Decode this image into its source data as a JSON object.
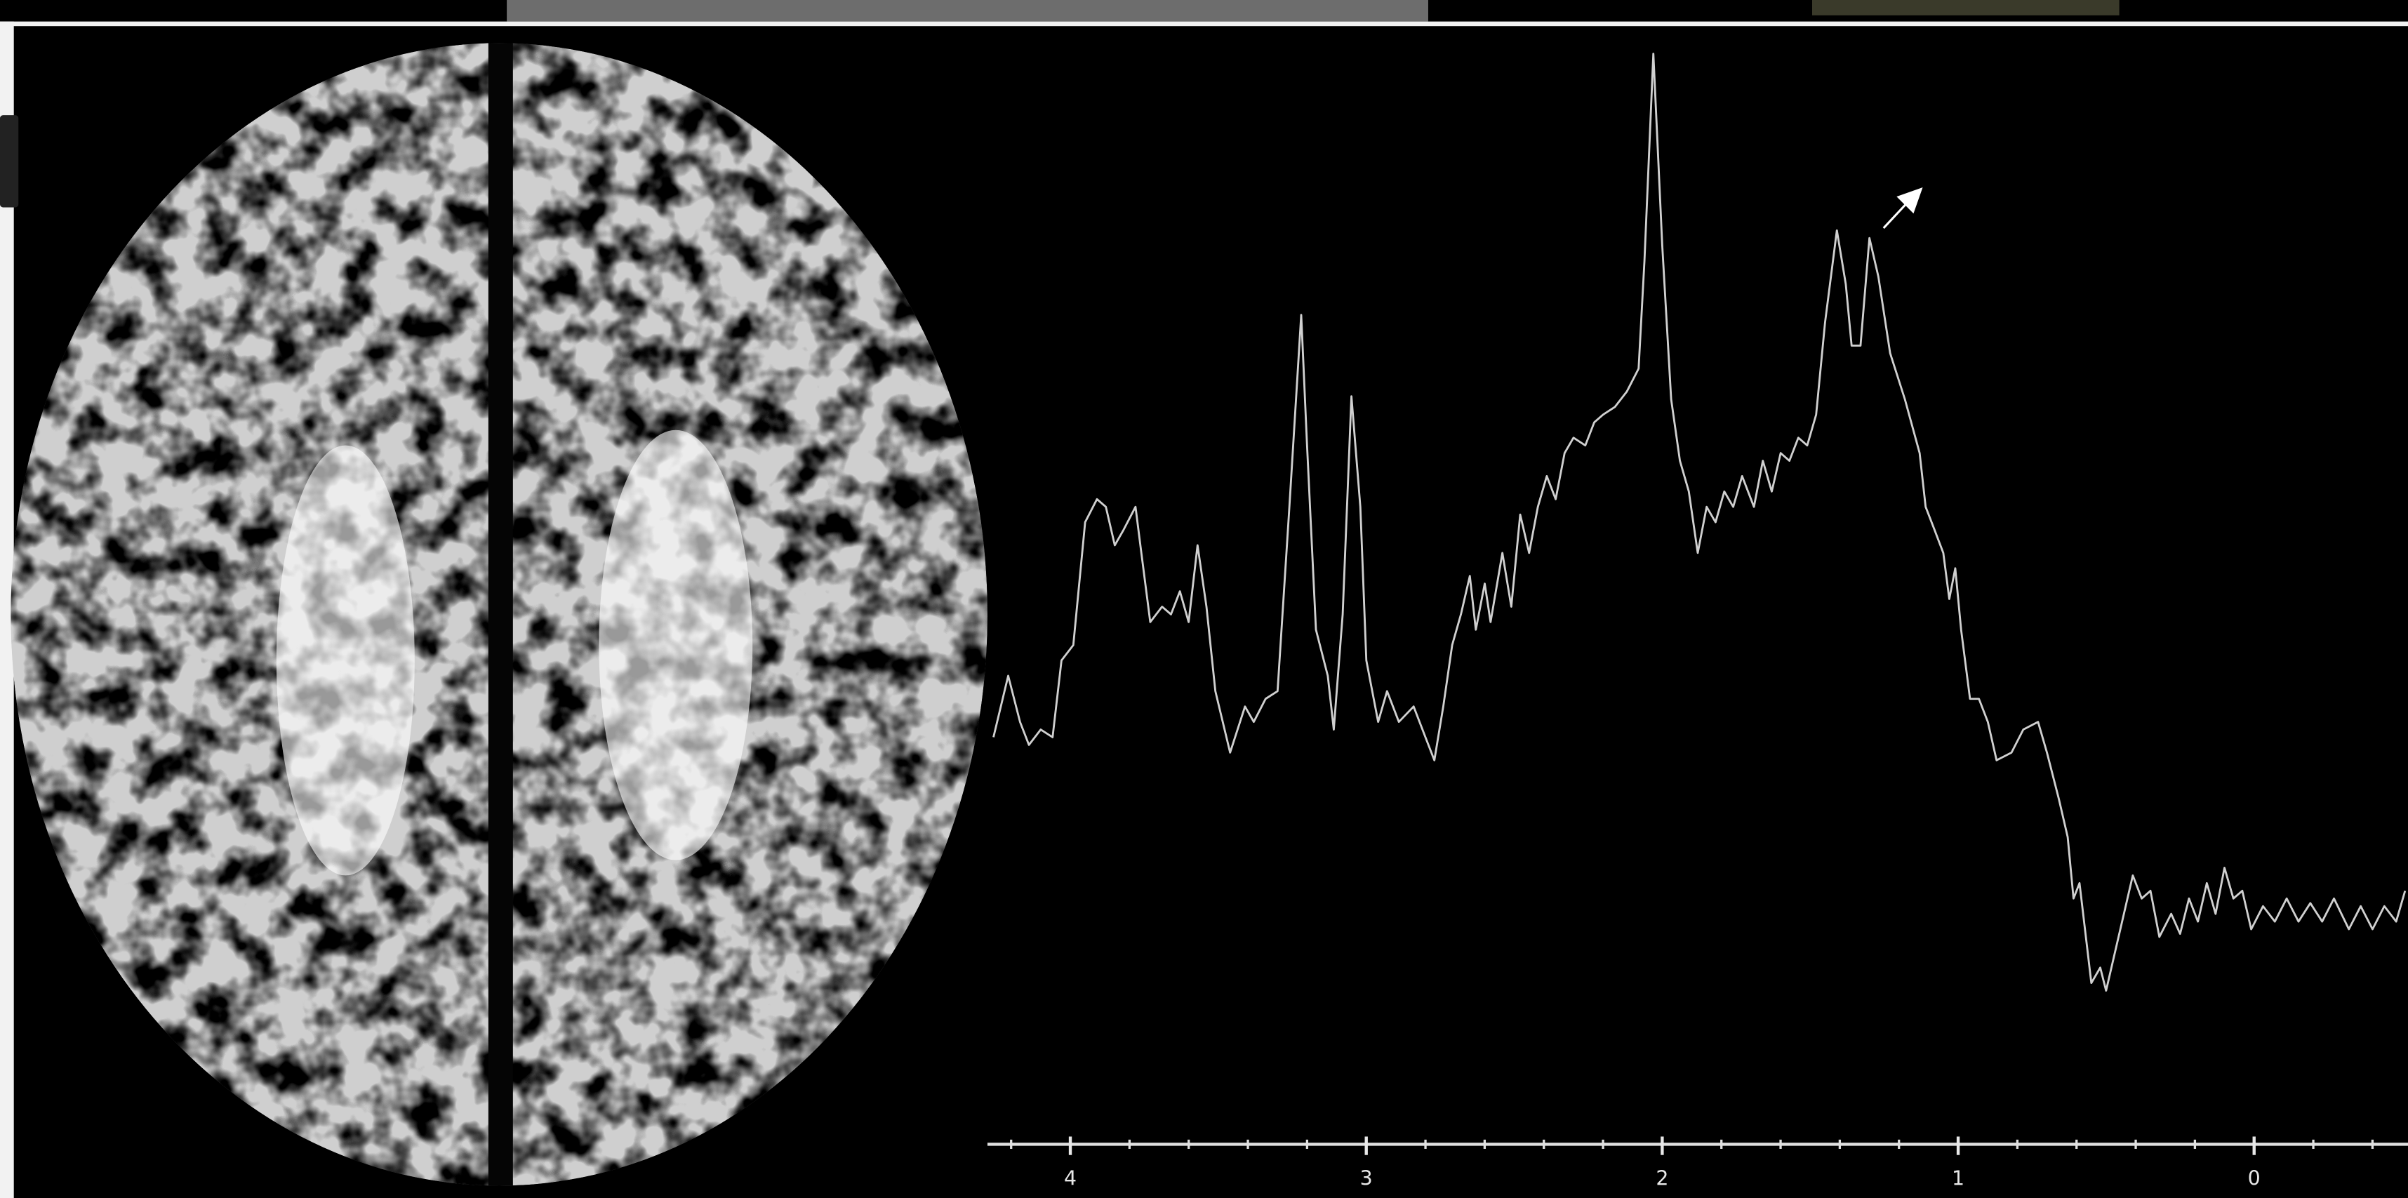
{
  "chart_data": {
    "type": "line",
    "color": "#d0d0d0",
    "xlim": [
      4.28,
      -0.52
    ],
    "xticks": [
      4,
      3,
      2,
      1,
      0
    ],
    "x": [
      4.26,
      4.21,
      4.17,
      4.14,
      4.1,
      4.06,
      4.03,
      3.99,
      3.95,
      3.91,
      3.88,
      3.85,
      3.82,
      3.78,
      3.76,
      3.73,
      3.69,
      3.66,
      3.63,
      3.6,
      3.57,
      3.54,
      3.51,
      3.46,
      3.41,
      3.38,
      3.34,
      3.3,
      3.26,
      3.22,
      3.2,
      3.17,
      3.13,
      3.11,
      3.08,
      3.05,
      3.02,
      3.0,
      2.96,
      2.93,
      2.89,
      2.84,
      2.8,
      2.77,
      2.74,
      2.71,
      2.68,
      2.65,
      2.63,
      2.6,
      2.58,
      2.54,
      2.51,
      2.48,
      2.45,
      2.42,
      2.39,
      2.36,
      2.33,
      2.3,
      2.26,
      2.23,
      2.2,
      2.16,
      2.12,
      2.08,
      2.06,
      2.03,
      2.0,
      1.97,
      1.94,
      1.91,
      1.88,
      1.85,
      1.82,
      1.79,
      1.76,
      1.73,
      1.69,
      1.66,
      1.63,
      1.6,
      1.57,
      1.54,
      1.51,
      1.48,
      1.45,
      1.41,
      1.38,
      1.36,
      1.33,
      1.3,
      1.27,
      1.23,
      1.18,
      1.13,
      1.11,
      1.08,
      1.05,
      1.03,
      1.01,
      0.99,
      0.96,
      0.93,
      0.9,
      0.87,
      0.82,
      0.78,
      0.73,
      0.7,
      0.66,
      0.63,
      0.61,
      0.59,
      0.55,
      0.52,
      0.5,
      0.47,
      0.44,
      0.41,
      0.38,
      0.35,
      0.32,
      0.28,
      0.25,
      0.22,
      0.19,
      0.16,
      0.13,
      0.1,
      0.07,
      0.04,
      0.01,
      -0.03,
      -0.07,
      -0.11,
      -0.15,
      -0.19,
      -0.23,
      -0.27,
      -0.32,
      -0.36,
      -0.4,
      -0.44,
      -0.48,
      -0.51
    ],
    "values": [
      265,
      305,
      275,
      260,
      270,
      265,
      315,
      325,
      405,
      420,
      415,
      390,
      400,
      415,
      385,
      340,
      350,
      345,
      360,
      340,
      390,
      350,
      295,
      255,
      285,
      275,
      290,
      295,
      415,
      540,
      455,
      335,
      305,
      270,
      345,
      487,
      415,
      315,
      275,
      295,
      275,
      285,
      265,
      250,
      285,
      325,
      345,
      370,
      335,
      365,
      340,
      385,
      350,
      410,
      385,
      415,
      435,
      420,
      450,
      460,
      455,
      470,
      475,
      480,
      490,
      505,
      575,
      710,
      585,
      485,
      445,
      425,
      385,
      415,
      405,
      425,
      415,
      435,
      415,
      445,
      425,
      450,
      445,
      460,
      455,
      475,
      535,
      595,
      560,
      520,
      520,
      590,
      565,
      515,
      485,
      450,
      415,
      400,
      385,
      355,
      375,
      335,
      290,
      290,
      275,
      250,
      255,
      270,
      275,
      255,
      225,
      200,
      160,
      170,
      105,
      115,
      100,
      125,
      150,
      175,
      160,
      165,
      135,
      150,
      137,
      160,
      145,
      170,
      150,
      180,
      160,
      165,
      140,
      155,
      145,
      160,
      145,
      157,
      145,
      160,
      140,
      155,
      140,
      155,
      145,
      165
    ]
  }
}
